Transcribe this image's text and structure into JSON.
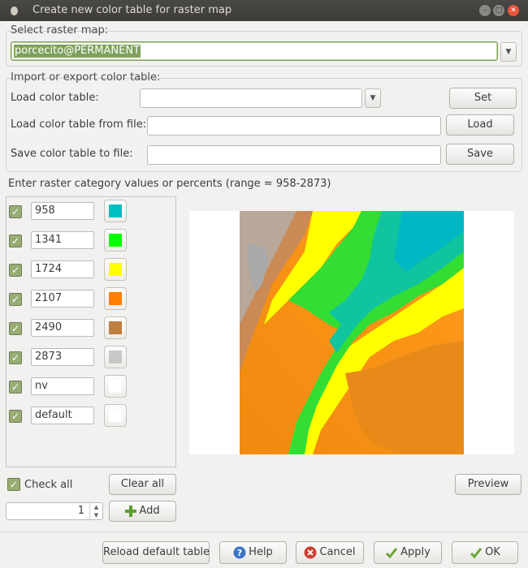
{
  "window": {
    "title": "Create new color table for raster map"
  },
  "raster_map": {
    "group_label": "Select raster map:",
    "value": "porcecito@PERMANENT"
  },
  "import_export": {
    "group_label": "Import or export color table:",
    "load_table_label": "Load color table:",
    "load_table_value": "",
    "set_label": "Set",
    "load_file_label": "Load color table from file:",
    "load_file_value": "",
    "load_label": "Load",
    "save_file_label": "Save color table to file:",
    "save_file_value": "",
    "save_label": "Save"
  },
  "rules": {
    "header": "Enter raster category values or percents (range = 958-2873)",
    "rows": [
      {
        "value": "958",
        "color": "#00bfbf"
      },
      {
        "value": "1341",
        "color": "#00ff00"
      },
      {
        "value": "1724",
        "color": "#ffff00"
      },
      {
        "value": "2107",
        "color": "#ff7f00"
      },
      {
        "value": "2490",
        "color": "#bf7f3f"
      },
      {
        "value": "2873",
        "color": "#c8c8c8"
      },
      {
        "value": "nv",
        "color": "#ffffff"
      },
      {
        "value": "default",
        "color": "#ffffff"
      }
    ]
  },
  "controls": {
    "check_all_label": "Check all",
    "clear_all_label": "Clear all",
    "spin_value": "1",
    "add_label": "Add",
    "preview_label": "Preview"
  },
  "footer": {
    "reload_label": "Reload default table",
    "help_label": "Help",
    "cancel_label": "Cancel",
    "apply_label": "Apply",
    "ok_label": "OK"
  },
  "colors": {
    "accent_green": "#7ea05d",
    "close_red": "#e9553a",
    "help_blue": "#3b74c6",
    "cancel_red": "#d23c2f"
  }
}
